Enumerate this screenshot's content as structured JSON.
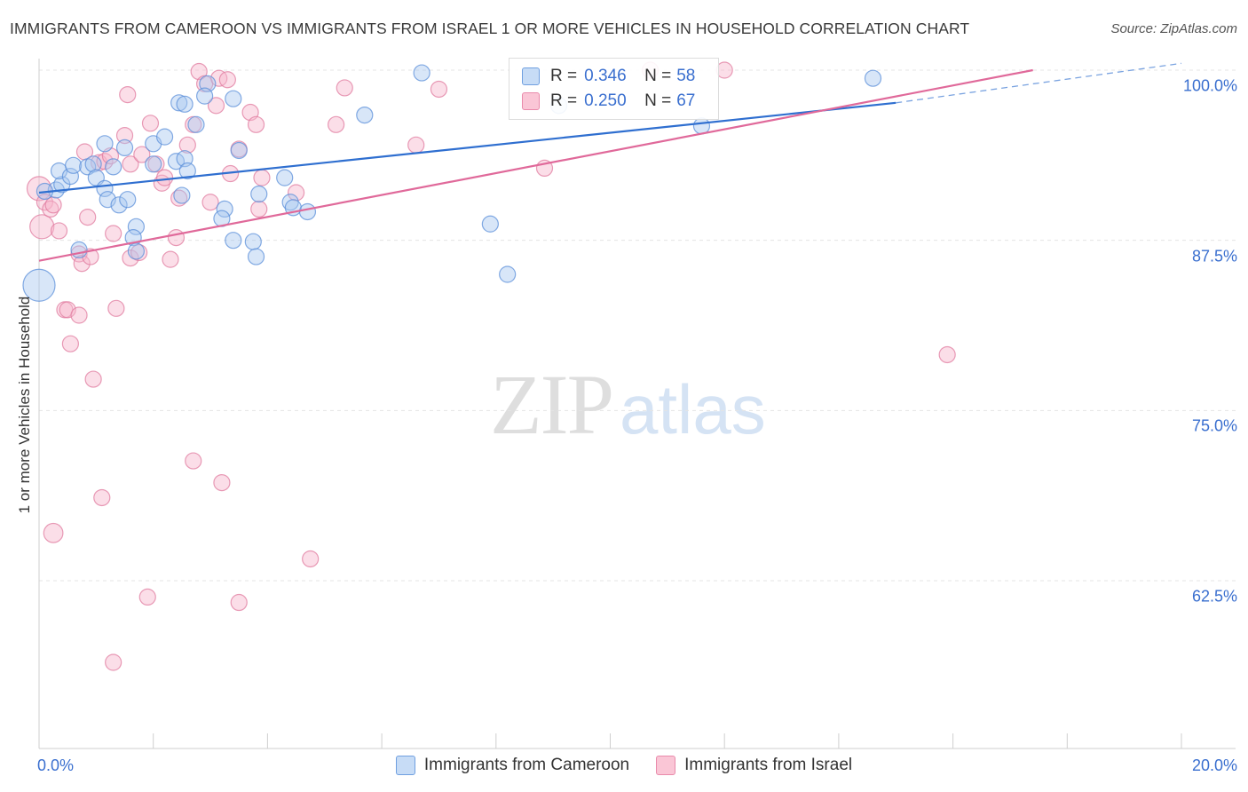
{
  "title": "IMMIGRANTS FROM CAMEROON VS IMMIGRANTS FROM ISRAEL 1 OR MORE VEHICLES IN HOUSEHOLD CORRELATION CHART",
  "source": "Source: ZipAtlas.com",
  "watermark": {
    "zip": "ZIP",
    "atlas": "atlas"
  },
  "legend_top": {
    "r_label": "R =",
    "n_label": "N =",
    "rows": [
      {
        "r": "0.346",
        "n": "58"
      },
      {
        "r": "0.250",
        "n": "67"
      }
    ]
  },
  "colors": {
    "cameroon_fill": "#a8c8f0",
    "cameroon_stroke": "#5b8fd9",
    "cameroon_line": "#2f6fd0",
    "israel_fill": "#f7b6cb",
    "israel_stroke": "#e07b9f",
    "israel_line": "#e0699a",
    "axis_text": "#3a6fcf",
    "grid": "#e4e4e4"
  },
  "chart_data": {
    "type": "scatter",
    "title": "IMMIGRANTS FROM CAMEROON VS IMMIGRANTS FROM ISRAEL 1 OR MORE VEHICLES IN HOUSEHOLD CORRELATION CHART",
    "xlabel": "",
    "ylabel": "1 or more Vehicles in Household",
    "xlim": [
      0.0,
      20.0
    ],
    "ylim": [
      50.0,
      101.0
    ],
    "x_tick_labels": [
      "0.0%",
      "20.0%"
    ],
    "y_ticks": [
      {
        "value": 100.0,
        "label": "100.0%"
      },
      {
        "value": 87.5,
        "label": "87.5%"
      },
      {
        "value": 75.0,
        "label": "75.0%"
      },
      {
        "value": 62.5,
        "label": "62.5%"
      }
    ],
    "grid": true,
    "legend_position": "bottom",
    "series": [
      {
        "name": "Immigrants from Cameroon",
        "r": 0.346,
        "n": 58,
        "trend": {
          "x0": 0.0,
          "y0": 91.0,
          "x1": 15.0,
          "y1": 97.6,
          "dash_to_x": 20.0,
          "dash_to_y": 100.5
        },
        "points": [
          [
            0.3,
            91.2,
            1
          ],
          [
            0.4,
            91.6,
            1
          ],
          [
            0.35,
            92.6,
            1
          ],
          [
            0.55,
            92.2,
            1
          ],
          [
            0.6,
            93.0,
            1
          ],
          [
            0.85,
            92.9,
            1
          ],
          [
            0.95,
            93.1,
            1
          ],
          [
            1.3,
            92.9,
            1
          ],
          [
            1.0,
            92.1,
            1
          ],
          [
            1.15,
            91.3,
            1
          ],
          [
            1.2,
            90.5,
            1
          ],
          [
            1.4,
            90.1,
            1
          ],
          [
            1.55,
            90.5,
            1
          ],
          [
            1.7,
            88.5,
            1
          ],
          [
            1.65,
            87.7,
            1
          ],
          [
            0.7,
            86.8,
            1
          ],
          [
            1.7,
            86.7,
            1
          ],
          [
            1.5,
            94.3,
            1
          ],
          [
            1.15,
            94.6,
            1
          ],
          [
            2.0,
            94.6,
            1
          ],
          [
            2.0,
            93.1,
            1
          ],
          [
            2.2,
            95.1,
            1
          ],
          [
            2.4,
            93.3,
            1
          ],
          [
            2.55,
            93.5,
            1
          ],
          [
            2.5,
            90.8,
            1
          ],
          [
            2.45,
            97.6,
            1
          ],
          [
            2.55,
            97.5,
            1
          ],
          [
            2.75,
            96.0,
            1
          ],
          [
            2.95,
            99.0,
            1
          ],
          [
            2.9,
            98.1,
            1
          ],
          [
            3.4,
            97.9,
            1
          ],
          [
            3.5,
            94.1,
            1
          ],
          [
            3.25,
            89.8,
            1
          ],
          [
            3.2,
            89.1,
            1
          ],
          [
            3.4,
            87.5,
            1
          ],
          [
            3.75,
            87.4,
            1
          ],
          [
            3.8,
            86.3,
            1
          ],
          [
            3.85,
            90.9,
            1
          ],
          [
            4.3,
            92.1,
            1
          ],
          [
            4.4,
            90.3,
            1
          ],
          [
            4.45,
            89.9,
            1
          ],
          [
            4.7,
            89.6,
            1
          ],
          [
            5.7,
            96.7,
            1
          ],
          [
            6.7,
            99.8,
            1
          ],
          [
            7.9,
            88.7,
            1
          ],
          [
            8.2,
            85.0,
            1
          ],
          [
            9.1,
            97.4,
            1
          ],
          [
            11.6,
            95.9,
            1
          ],
          [
            14.6,
            99.4,
            1
          ],
          [
            0.0,
            84.2,
            2
          ],
          [
            0.1,
            91.1,
            1
          ],
          [
            2.6,
            92.6,
            1
          ]
        ]
      },
      {
        "name": "Immigrants from Israel",
        "r": 0.25,
        "n": 67,
        "trend": {
          "x0": 0.0,
          "y0": 86.0,
          "x1": 17.4,
          "y1": 100.0
        },
        "points": [
          [
            0.0,
            91.3,
            1.5
          ],
          [
            0.05,
            88.5,
            1.5
          ],
          [
            0.1,
            90.3,
            1
          ],
          [
            0.2,
            89.8,
            1
          ],
          [
            0.25,
            90.1,
            1
          ],
          [
            0.35,
            88.2,
            1
          ],
          [
            0.45,
            82.4,
            1
          ],
          [
            0.5,
            82.4,
            1
          ],
          [
            0.55,
            79.9,
            1
          ],
          [
            0.7,
            82.0,
            1
          ],
          [
            0.7,
            86.5,
            1
          ],
          [
            0.75,
            85.8,
            1
          ],
          [
            0.85,
            89.2,
            1
          ],
          [
            0.8,
            94.0,
            1
          ],
          [
            0.9,
            86.3,
            1
          ],
          [
            0.95,
            77.3,
            1
          ],
          [
            1.05,
            93.2,
            1
          ],
          [
            1.15,
            93.3,
            1
          ],
          [
            1.25,
            93.7,
            1
          ],
          [
            1.3,
            88.0,
            1
          ],
          [
            1.35,
            82.5,
            1
          ],
          [
            1.5,
            95.2,
            1
          ],
          [
            1.55,
            98.2,
            1
          ],
          [
            1.6,
            93.1,
            1
          ],
          [
            1.6,
            86.2,
            1
          ],
          [
            1.75,
            86.6,
            1
          ],
          [
            1.8,
            93.8,
            1
          ],
          [
            1.95,
            96.1,
            1
          ],
          [
            2.05,
            93.1,
            1
          ],
          [
            2.15,
            91.7,
            1
          ],
          [
            2.2,
            92.1,
            1
          ],
          [
            2.3,
            86.1,
            1
          ],
          [
            2.4,
            87.7,
            1
          ],
          [
            2.45,
            90.6,
            1
          ],
          [
            2.6,
            94.5,
            1
          ],
          [
            2.7,
            96.0,
            1
          ],
          [
            2.8,
            99.9,
            1
          ],
          [
            2.9,
            99.0,
            1
          ],
          [
            3.0,
            90.3,
            1
          ],
          [
            3.1,
            97.4,
            1
          ],
          [
            3.15,
            99.4,
            1
          ],
          [
            3.3,
            99.3,
            1
          ],
          [
            3.35,
            92.4,
            1
          ],
          [
            3.5,
            94.2,
            1
          ],
          [
            3.7,
            96.9,
            1
          ],
          [
            3.8,
            96.0,
            1
          ],
          [
            3.85,
            89.8,
            1
          ],
          [
            3.9,
            92.1,
            1
          ],
          [
            4.5,
            91.0,
            1
          ],
          [
            5.2,
            96.0,
            1
          ],
          [
            5.35,
            98.7,
            1
          ],
          [
            6.6,
            94.5,
            1
          ],
          [
            7.0,
            98.6,
            1
          ],
          [
            8.85,
            92.8,
            1
          ],
          [
            10.7,
            100.0,
            1
          ],
          [
            12.0,
            100.0,
            1
          ],
          [
            15.9,
            79.1,
            1
          ],
          [
            0.25,
            66.0,
            1.2
          ],
          [
            1.1,
            68.6,
            1
          ],
          [
            2.7,
            71.3,
            1
          ],
          [
            3.2,
            69.7,
            1
          ],
          [
            1.9,
            61.3,
            1
          ],
          [
            1.3,
            56.5,
            1
          ],
          [
            3.5,
            60.9,
            1
          ],
          [
            4.75,
            64.1,
            1
          ]
        ]
      }
    ]
  }
}
